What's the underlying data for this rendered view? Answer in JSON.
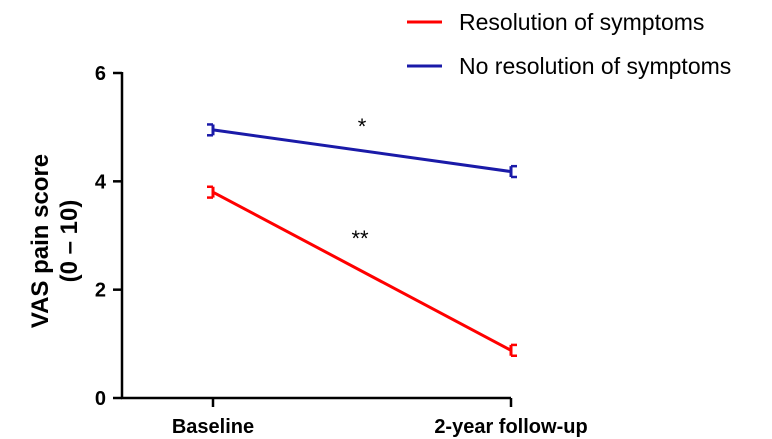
{
  "chart_data": {
    "type": "line",
    "categories": [
      "Baseline",
      "2-year follow-up"
    ],
    "ylabel_lines": [
      "VAS pain score",
      "(0 – 10)"
    ],
    "ylim": [
      0,
      6
    ],
    "yticks": [
      0,
      2,
      4,
      6
    ],
    "ytick_labels": [
      "0",
      "2",
      "4",
      "6"
    ],
    "grid": false,
    "legend_position": "top-right",
    "series": [
      {
        "name": "Resolution of symptoms",
        "color": "#ff0000",
        "values": [
          3.8,
          0.88
        ],
        "errors": [
          0.1,
          0.1
        ]
      },
      {
        "name": "No resolution of symptoms",
        "color": "#1a1aa8",
        "values": [
          4.95,
          4.18
        ],
        "errors": [
          0.1,
          0.1
        ]
      }
    ],
    "annotations": [
      {
        "text": "*",
        "series": 1
      },
      {
        "text": "**",
        "series": 0
      }
    ]
  }
}
